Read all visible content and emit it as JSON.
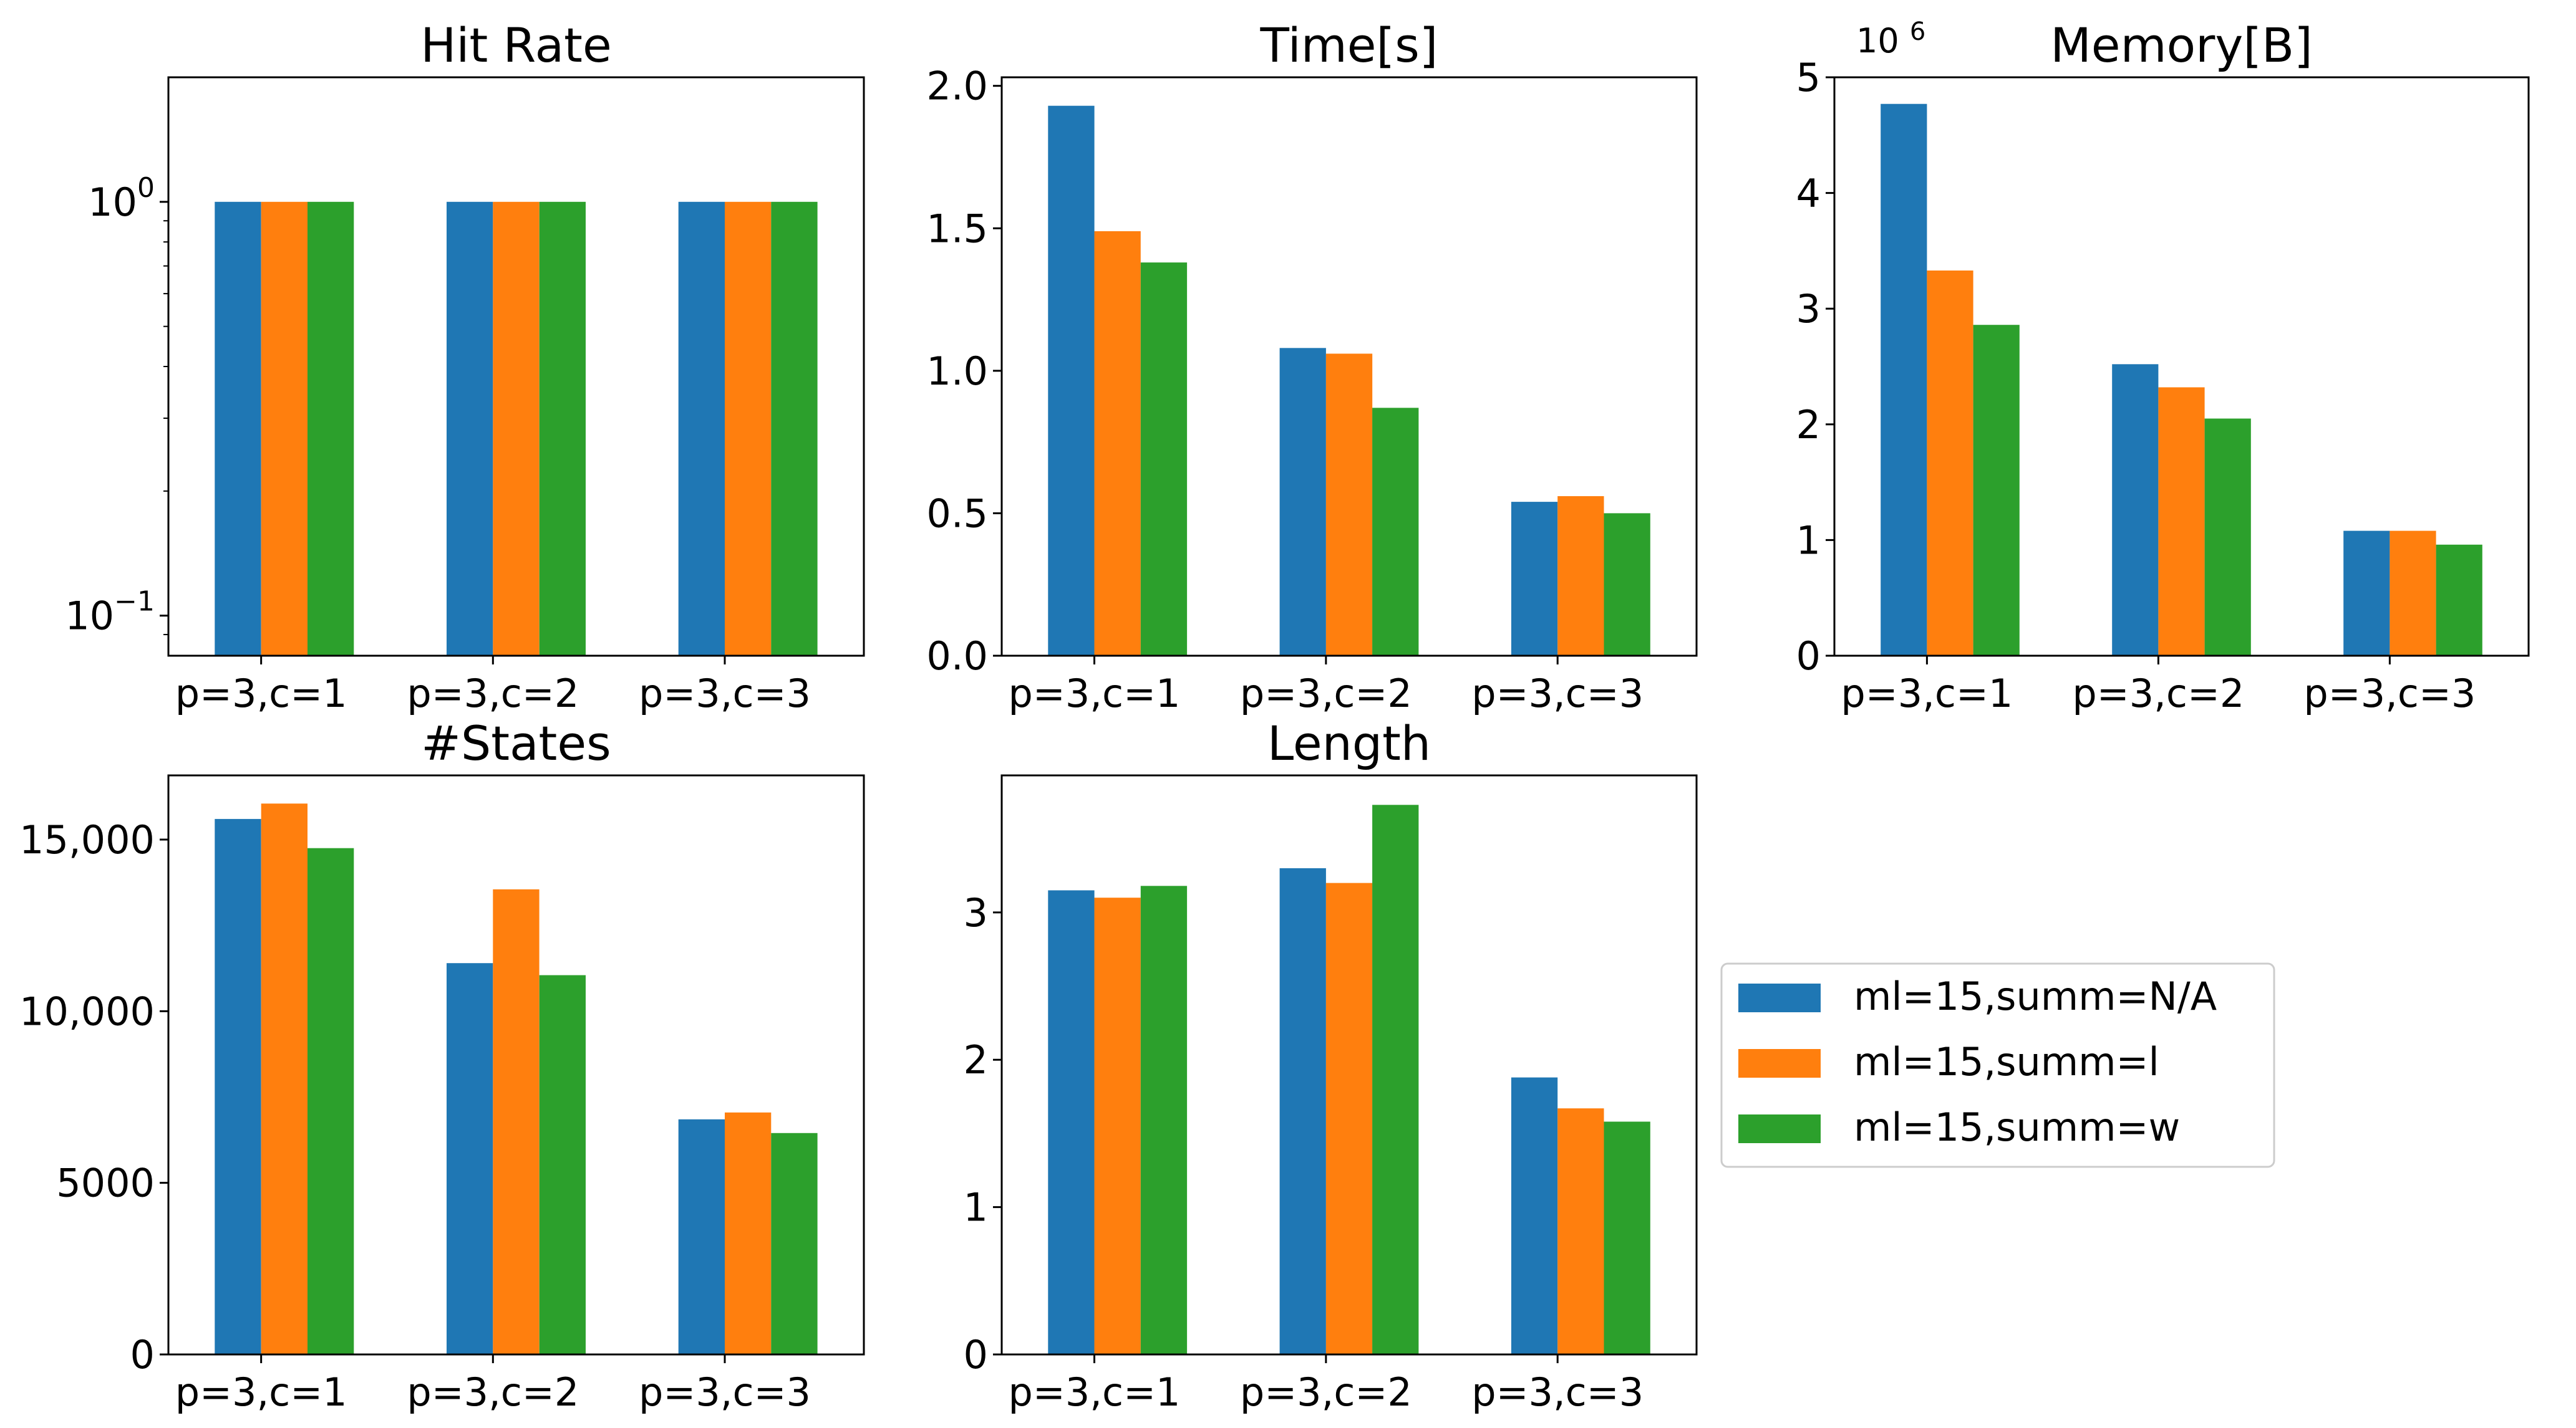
{
  "chart_data": [
    {
      "type": "bar",
      "title": "Hit Rate",
      "yscale": "log",
      "ylim": [
        0.08,
        2.0
      ],
      "yticks": [
        {
          "value": 0.1,
          "base": "10",
          "exp": "−1"
        },
        {
          "value": 1,
          "base": "10",
          "exp": "0"
        }
      ],
      "categories": [
        "p=3,c=1",
        "p=3,c=2",
        "p=3,c=3"
      ],
      "series": [
        {
          "name": "ml=15,summ=N/A",
          "values": [
            1.0,
            1.0,
            1.0
          ]
        },
        {
          "name": "ml=15,summ=l",
          "values": [
            1.0,
            1.0,
            1.0
          ]
        },
        {
          "name": "ml=15,summ=w",
          "values": [
            1.0,
            1.0,
            1.0
          ]
        }
      ]
    },
    {
      "type": "bar",
      "title": "Time[s]",
      "ylim": [
        0,
        2.03
      ],
      "yticks": [
        {
          "value": 0,
          "label": "0.0"
        },
        {
          "value": 0.5,
          "label": "0.5"
        },
        {
          "value": 1.0,
          "label": "1.0"
        },
        {
          "value": 1.5,
          "label": "1.5"
        },
        {
          "value": 2.0,
          "label": "2.0"
        }
      ],
      "categories": [
        "p=3,c=1",
        "p=3,c=2",
        "p=3,c=3"
      ],
      "series": [
        {
          "name": "ml=15,summ=N/A",
          "values": [
            1.93,
            1.08,
            0.54
          ]
        },
        {
          "name": "ml=15,summ=l",
          "values": [
            1.49,
            1.06,
            0.56
          ]
        },
        {
          "name": "ml=15,summ=w",
          "values": [
            1.38,
            0.87,
            0.5
          ]
        }
      ]
    },
    {
      "type": "bar",
      "title": "Memory[B]",
      "offset_base": "10",
      "offset_exp": "6",
      "ylim": [
        0,
        5.0
      ],
      "yticks": [
        {
          "value": 0,
          "label": "0"
        },
        {
          "value": 1,
          "label": "1"
        },
        {
          "value": 2,
          "label": "2"
        },
        {
          "value": 3,
          "label": "3"
        },
        {
          "value": 4,
          "label": "4"
        },
        {
          "value": 5,
          "label": "5"
        }
      ],
      "categories": [
        "p=3,c=1",
        "p=3,c=2",
        "p=3,c=3"
      ],
      "series": [
        {
          "name": "ml=15,summ=N/A",
          "values": [
            4.77,
            2.52,
            1.08
          ]
        },
        {
          "name": "ml=15,summ=l",
          "values": [
            3.33,
            2.32,
            1.08
          ]
        },
        {
          "name": "ml=15,summ=w",
          "values": [
            2.86,
            2.05,
            0.96
          ]
        }
      ]
    },
    {
      "type": "bar",
      "title": "#States",
      "ylim": [
        0,
        16870
      ],
      "yticks": [
        {
          "value": 0,
          "label": "0"
        },
        {
          "value": 5000,
          "label": "5000"
        },
        {
          "value": 10000,
          "label": "10,000"
        },
        {
          "value": 15000,
          "label": "15,000"
        }
      ],
      "categories": [
        "p=3,c=1",
        "p=3,c=2",
        "p=3,c=3"
      ],
      "series": [
        {
          "name": "ml=15,summ=N/A",
          "values": [
            15600,
            11400,
            6850
          ]
        },
        {
          "name": "ml=15,summ=l",
          "values": [
            16050,
            13550,
            7050
          ]
        },
        {
          "name": "ml=15,summ=w",
          "values": [
            14750,
            11050,
            6450
          ]
        }
      ]
    },
    {
      "type": "bar",
      "title": "Length",
      "ylim": [
        0,
        3.93
      ],
      "yticks": [
        {
          "value": 0,
          "label": "0"
        },
        {
          "value": 1,
          "label": "1"
        },
        {
          "value": 2,
          "label": "2"
        },
        {
          "value": 3,
          "label": "3"
        }
      ],
      "categories": [
        "p=3,c=1",
        "p=3,c=2",
        "p=3,c=3"
      ],
      "series": [
        {
          "name": "ml=15,summ=N/A",
          "values": [
            3.15,
            3.3,
            1.88
          ]
        },
        {
          "name": "ml=15,summ=l",
          "values": [
            3.1,
            3.2,
            1.67
          ]
        },
        {
          "name": "ml=15,summ=w",
          "values": [
            3.18,
            3.73,
            1.58
          ]
        }
      ]
    }
  ],
  "legend": {
    "items": [
      {
        "label": "ml=15,summ=N/A",
        "color": "#1f77b4"
      },
      {
        "label": "ml=15,summ=l",
        "color": "#ff7f0e"
      },
      {
        "label": "ml=15,summ=w",
        "color": "#2ca02c"
      }
    ]
  }
}
